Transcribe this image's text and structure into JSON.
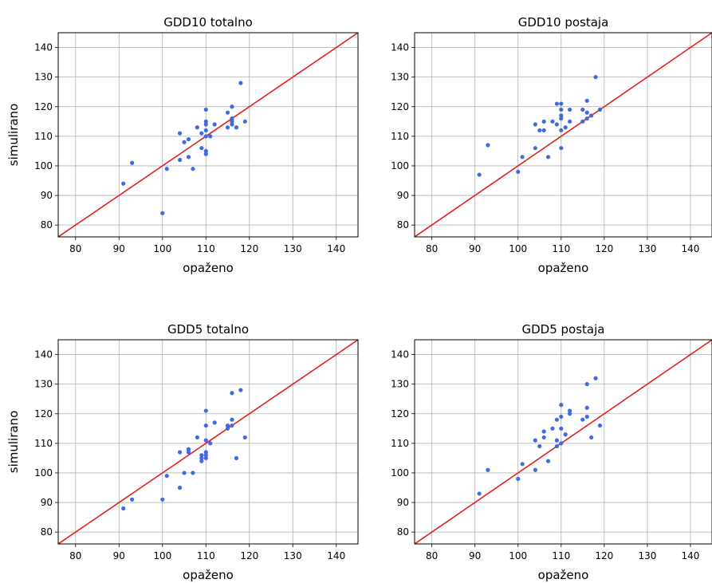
{
  "chart_data": [
    {
      "type": "scatter",
      "title": "GDD10 totalno",
      "xlabel": "opaženo",
      "ylabel": "simulirano",
      "xlim": [
        76,
        145
      ],
      "ylim": [
        76,
        145
      ],
      "xticks": [
        80,
        90,
        100,
        110,
        120,
        130,
        140
      ],
      "yticks": [
        80,
        90,
        100,
        110,
        120,
        130,
        140
      ],
      "grid": true,
      "reference_line": "y = x",
      "point_color": "#4169e1",
      "line_color": "#e02020",
      "points": [
        [
          91,
          94
        ],
        [
          93,
          101
        ],
        [
          100,
          84
        ],
        [
          101,
          99
        ],
        [
          104,
          102
        ],
        [
          104,
          111
        ],
        [
          105,
          108
        ],
        [
          106,
          103
        ],
        [
          106,
          109
        ],
        [
          107,
          99
        ],
        [
          108,
          113
        ],
        [
          109,
          106
        ],
        [
          109,
          111
        ],
        [
          110,
          104
        ],
        [
          110,
          105
        ],
        [
          110,
          110
        ],
        [
          110,
          112
        ],
        [
          110,
          114
        ],
        [
          110,
          115
        ],
        [
          110,
          119
        ],
        [
          111,
          110
        ],
        [
          112,
          114
        ],
        [
          115,
          113
        ],
        [
          115,
          118
        ],
        [
          116,
          114
        ],
        [
          116,
          115
        ],
        [
          116,
          116
        ],
        [
          116,
          120
        ],
        [
          117,
          113
        ],
        [
          118,
          128
        ],
        [
          119,
          115
        ]
      ]
    },
    {
      "type": "scatter",
      "title": "GDD10 postaja",
      "xlabel": "opaženo",
      "ylabel": "",
      "xlim": [
        76,
        145
      ],
      "ylim": [
        76,
        145
      ],
      "xticks": [
        80,
        90,
        100,
        110,
        120,
        130,
        140
      ],
      "yticks": [
        80,
        90,
        100,
        110,
        120,
        130,
        140
      ],
      "grid": true,
      "reference_line": "y = x",
      "point_color": "#4169e1",
      "line_color": "#e02020",
      "points": [
        [
          91,
          97
        ],
        [
          93,
          107
        ],
        [
          100,
          98
        ],
        [
          101,
          103
        ],
        [
          104,
          106
        ],
        [
          104,
          114
        ],
        [
          105,
          112
        ],
        [
          106,
          112
        ],
        [
          106,
          115
        ],
        [
          107,
          103
        ],
        [
          108,
          115
        ],
        [
          109,
          114
        ],
        [
          109,
          121
        ],
        [
          110,
          106
        ],
        [
          110,
          112
        ],
        [
          110,
          116
        ],
        [
          110,
          117
        ],
        [
          110,
          119
        ],
        [
          110,
          121
        ],
        [
          111,
          113
        ],
        [
          112,
          115
        ],
        [
          112,
          119
        ],
        [
          115,
          115
        ],
        [
          115,
          119
        ],
        [
          116,
          116
        ],
        [
          116,
          118
        ],
        [
          116,
          122
        ],
        [
          117,
          117
        ],
        [
          118,
          130
        ],
        [
          119,
          119
        ]
      ]
    },
    {
      "type": "scatter",
      "title": "GDD5 totalno",
      "xlabel": "opaženo",
      "ylabel": "simulirano",
      "xlim": [
        76,
        145
      ],
      "ylim": [
        76,
        145
      ],
      "xticks": [
        80,
        90,
        100,
        110,
        120,
        130,
        140
      ],
      "yticks": [
        80,
        90,
        100,
        110,
        120,
        130,
        140
      ],
      "grid": true,
      "reference_line": "y = x",
      "point_color": "#4169e1",
      "line_color": "#e02020",
      "points": [
        [
          91,
          88
        ],
        [
          93,
          91
        ],
        [
          100,
          91
        ],
        [
          101,
          99
        ],
        [
          104,
          95
        ],
        [
          104,
          107
        ],
        [
          105,
          100
        ],
        [
          106,
          107
        ],
        [
          106,
          108
        ],
        [
          107,
          100
        ],
        [
          108,
          112
        ],
        [
          109,
          104
        ],
        [
          109,
          105
        ],
        [
          109,
          106
        ],
        [
          110,
          105
        ],
        [
          110,
          106
        ],
        [
          110,
          107
        ],
        [
          110,
          111
        ],
        [
          110,
          116
        ],
        [
          110,
          121
        ],
        [
          111,
          110
        ],
        [
          112,
          117
        ],
        [
          115,
          115
        ],
        [
          115,
          116
        ],
        [
          116,
          116
        ],
        [
          116,
          118
        ],
        [
          116,
          127
        ],
        [
          117,
          105
        ],
        [
          118,
          128
        ],
        [
          119,
          112
        ]
      ]
    },
    {
      "type": "scatter",
      "title": "GDD5 postaja",
      "xlabel": "opaženo",
      "ylabel": "",
      "xlim": [
        76,
        145
      ],
      "ylim": [
        76,
        145
      ],
      "xticks": [
        80,
        90,
        100,
        110,
        120,
        130,
        140
      ],
      "yticks": [
        80,
        90,
        100,
        110,
        120,
        130,
        140
      ],
      "grid": true,
      "reference_line": "y = x",
      "point_color": "#4169e1",
      "line_color": "#e02020",
      "points": [
        [
          91,
          93
        ],
        [
          93,
          101
        ],
        [
          100,
          98
        ],
        [
          101,
          103
        ],
        [
          104,
          101
        ],
        [
          104,
          111
        ],
        [
          105,
          109
        ],
        [
          106,
          112
        ],
        [
          106,
          114
        ],
        [
          107,
          104
        ],
        [
          108,
          115
        ],
        [
          109,
          109
        ],
        [
          109,
          111
        ],
        [
          109,
          118
        ],
        [
          110,
          110
        ],
        [
          110,
          115
        ],
        [
          110,
          119
        ],
        [
          110,
          123
        ],
        [
          111,
          113
        ],
        [
          112,
          120
        ],
        [
          112,
          121
        ],
        [
          115,
          118
        ],
        [
          116,
          119
        ],
        [
          116,
          122
        ],
        [
          116,
          130
        ],
        [
          117,
          112
        ],
        [
          118,
          132
        ],
        [
          119,
          116
        ]
      ]
    }
  ]
}
